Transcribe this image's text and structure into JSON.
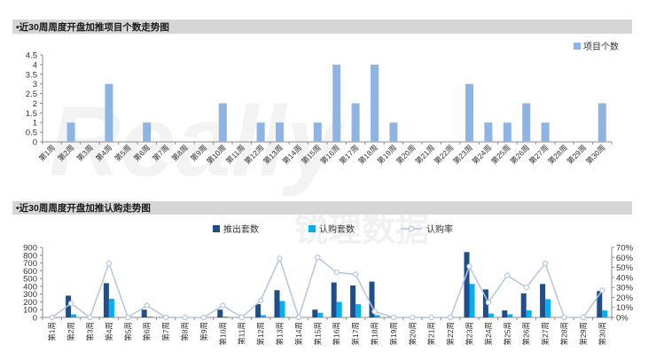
{
  "watermark": {
    "logo": "Really",
    "cn": "锐理数据"
  },
  "chart_data": [
    {
      "type": "bar",
      "title": "•近30周周度开盘加推项目个数走势图",
      "categories": [
        "第1周",
        "第2周",
        "第3周",
        "第4周",
        "第5周",
        "第6周",
        "第7周",
        "第8周",
        "第9周",
        "第10周",
        "第11周",
        "第12周",
        "第13周",
        "第14周",
        "第15周",
        "第16周",
        "第17周",
        "第18周",
        "第19周",
        "第20周",
        "第21周",
        "第22周",
        "第23周",
        "第24周",
        "第25周",
        "第26周",
        "第27周",
        "第28周",
        "第29周",
        "第30周"
      ],
      "series": [
        {
          "name": "项目个数",
          "color": "#8eb4e3",
          "values": [
            0,
            1,
            0,
            3,
            0,
            1,
            0,
            0,
            0,
            2,
            0,
            1,
            1,
            0,
            1,
            4,
            2,
            4,
            1,
            0,
            0,
            0,
            3,
            1,
            1,
            2,
            1,
            0,
            0,
            2
          ]
        }
      ],
      "ylim": [
        0,
        4.5
      ],
      "yticks": [
        0,
        0.5,
        1,
        1.5,
        2,
        2.5,
        3,
        3.5,
        4,
        4.5
      ],
      "ytick_labels": [
        "0",
        "0.5",
        "1",
        "1.5",
        "2",
        "2.5",
        "3",
        "3.5",
        "4",
        "4.5"
      ],
      "legend": "top-right",
      "grid": false
    },
    {
      "type": "bar",
      "title": "•近30周周度开盘加推认购走势图",
      "categories": [
        "第1周",
        "第2周",
        "第3周",
        "第4周",
        "第5周",
        "第6周",
        "第7周",
        "第8周",
        "第9周",
        "第10周",
        "第11周",
        "第12周",
        "第13周",
        "第14周",
        "第15周",
        "第16周",
        "第17周",
        "第18周",
        "第19周",
        "第20周",
        "第21周",
        "第22周",
        "第23周",
        "第24周",
        "第25周",
        "第26周",
        "第27周",
        "第28周",
        "第29周",
        "第30周"
      ],
      "series": [
        {
          "name": "推出套数",
          "type": "bar",
          "axis": "left",
          "color": "#1f4e8a",
          "values": [
            0,
            280,
            0,
            440,
            0,
            100,
            0,
            0,
            0,
            100,
            0,
            170,
            350,
            0,
            100,
            450,
            410,
            460,
            0,
            0,
            0,
            0,
            840,
            360,
            90,
            310,
            430,
            0,
            0,
            340
          ]
        },
        {
          "name": "认购套数",
          "type": "bar",
          "axis": "left",
          "color": "#00b0f0",
          "values": [
            0,
            40,
            0,
            240,
            0,
            12,
            0,
            0,
            0,
            12,
            0,
            30,
            210,
            0,
            60,
            200,
            170,
            30,
            0,
            0,
            0,
            0,
            430,
            50,
            40,
            90,
            235,
            0,
            0,
            90
          ]
        },
        {
          "name": "认购率",
          "type": "line",
          "axis": "right",
          "color": "#b7c4e0",
          "values": [
            0,
            0.14,
            0,
            0.54,
            0,
            0.12,
            0,
            0,
            0,
            0.12,
            0,
            0.17,
            0.59,
            0,
            0.6,
            0.45,
            0.43,
            0.06,
            0,
            0,
            0,
            0,
            0.51,
            0.15,
            0.42,
            0.3,
            0.54,
            0,
            0,
            0.27
          ]
        }
      ],
      "ylim": [
        0,
        900
      ],
      "yticks": [
        0,
        100,
        200,
        300,
        400,
        500,
        600,
        700,
        800,
        900
      ],
      "ytick_labels": [
        "0",
        "100",
        "200",
        "300",
        "400",
        "500",
        "600",
        "700",
        "800",
        "900"
      ],
      "y2lim": [
        0,
        0.7
      ],
      "y2ticks": [
        0,
        0.1,
        0.2,
        0.3,
        0.4,
        0.5,
        0.6,
        0.7
      ],
      "y2tick_labels": [
        "0%",
        "10%",
        "20%",
        "30%",
        "40%",
        "50%",
        "60%",
        "70%"
      ],
      "legend": "top-center",
      "grid": false
    }
  ]
}
